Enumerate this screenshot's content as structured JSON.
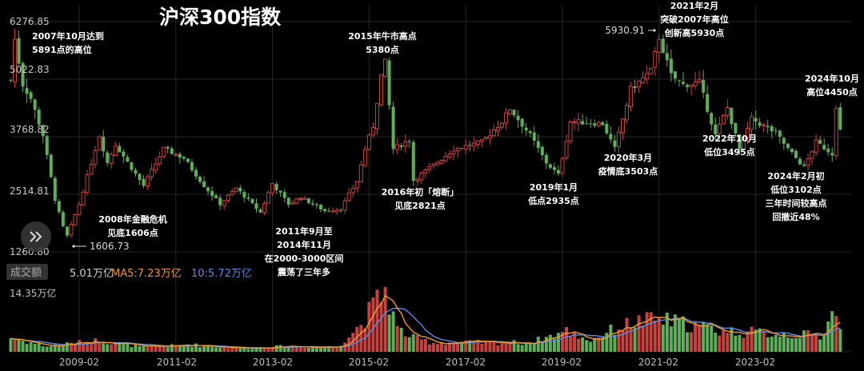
{
  "title": "沪深300指数",
  "colors": {
    "up": "#c8433f",
    "down": "#5fae5a",
    "ma5": "#f39a2a",
    "ma10": "#5b8de6",
    "grid": "#262626",
    "text": "#c8c8c8"
  },
  "icons": {
    "expand": "double-chevron-right-icon"
  },
  "price_axis": {
    "ticks": [
      "6276.85",
      "5022.83",
      "3768.82",
      "2514.81",
      "1260.80"
    ]
  },
  "extremes": {
    "high_label": "5930.91",
    "low_label": "1606.73"
  },
  "annotations": [
    "2007年10月达到\n5891点的高位",
    "2008年金融危机\n见底1606点",
    "2011年9月至\n2014年11月\n在2000-3000区间\n震荡了三年多",
    "2015年牛市高点\n5380点",
    "2016年初「熔断」\n见底2821点",
    "2019年1月\n低点2935点",
    "2020年3月\n疫情底3503点",
    "2021年2月\n突破2007年高位\n创新高5930点",
    "2022年10月\n低位3495点",
    "2024年2月初\n低位3102点\n三年时间较高点\n回撤近48%",
    "2024年10月\n高位4450点"
  ],
  "volume_header": {
    "tab": "成交额",
    "current": "5.01万亿",
    "ma5": "MA5:7.23万亿",
    "ma10": "10:5.72万亿",
    "axis_max": "14.35万亿"
  },
  "time_axis": {
    "ticks": [
      "2009-02",
      "2011-02",
      "2013-02",
      "2015-02",
      "2017-02",
      "2019-02",
      "2021-02",
      "2023-02"
    ]
  },
  "chart_data": {
    "type": "candlestick",
    "title": "沪深300指数",
    "frequency": "monthly (approximate, read from figure)",
    "price_unit": "index points",
    "y_range": [
      1260.8,
      6276.85
    ],
    "x_range": [
      "2007-09",
      "2024-11"
    ],
    "price_keypoints": [
      [
        "2007-09",
        5000
      ],
      [
        "2007-10",
        5891
      ],
      [
        "2007-12",
        4900
      ],
      [
        "2008-02",
        4600
      ],
      [
        "2008-05",
        3800
      ],
      [
        "2008-08",
        2400
      ],
      [
        "2008-10",
        1800
      ],
      [
        "2008-11",
        1606
      ],
      [
        "2009-02",
        2300
      ],
      [
        "2009-07",
        3800
      ],
      [
        "2009-09",
        3200
      ],
      [
        "2009-11",
        3600
      ],
      [
        "2010-06",
        2700
      ],
      [
        "2010-11",
        3500
      ],
      [
        "2011-04",
        3300
      ],
      [
        "2011-09",
        2700
      ],
      [
        "2012-01",
        2300
      ],
      [
        "2012-05",
        2650
      ],
      [
        "2012-11",
        2120
      ],
      [
        "2013-02",
        2750
      ],
      [
        "2013-06",
        2300
      ],
      [
        "2013-09",
        2450
      ],
      [
        "2014-03",
        2150
      ],
      [
        "2014-07",
        2200
      ],
      [
        "2014-11",
        2800
      ],
      [
        "2015-01",
        3500
      ],
      [
        "2015-03",
        4000
      ],
      [
        "2015-05",
        5100
      ],
      [
        "2015-06",
        5380
      ],
      [
        "2015-08",
        3500
      ],
      [
        "2015-12",
        3700
      ],
      [
        "2016-01",
        2821
      ],
      [
        "2016-06",
        3150
      ],
      [
        "2016-11",
        3500
      ],
      [
        "2017-06",
        3650
      ],
      [
        "2017-11",
        4100
      ],
      [
        "2018-01",
        4380
      ],
      [
        "2018-06",
        3800
      ],
      [
        "2018-10",
        3200
      ],
      [
        "2019-01",
        2935
      ],
      [
        "2019-04",
        4100
      ],
      [
        "2019-12",
        4050
      ],
      [
        "2020-03",
        3503
      ],
      [
        "2020-07",
        4800
      ],
      [
        "2020-12",
        5200
      ],
      [
        "2021-02",
        5930
      ],
      [
        "2021-05",
        5100
      ],
      [
        "2021-08",
        4900
      ],
      [
        "2021-12",
        4950
      ],
      [
        "2022-04",
        3800
      ],
      [
        "2022-07",
        4400
      ],
      [
        "2022-10",
        3495
      ],
      [
        "2023-01",
        4150
      ],
      [
        "2023-07",
        3850
      ],
      [
        "2023-10",
        3500
      ],
      [
        "2024-02",
        3102
      ],
      [
        "2024-05",
        3650
      ],
      [
        "2024-09",
        3400
      ],
      [
        "2024-10",
        4450
      ],
      [
        "2024-11",
        3900
      ]
    ],
    "volume": {
      "unit": "万亿",
      "axis_max": 14.35,
      "keypoints": [
        [
          "2007-09",
          3.0
        ],
        [
          "2008-06",
          1.2
        ],
        [
          "2009-07",
          2.5
        ],
        [
          "2010-06",
          1.0
        ],
        [
          "2011-06",
          1.5
        ],
        [
          "2012-06",
          0.8
        ],
        [
          "2013-06",
          1.2
        ],
        [
          "2014-06",
          1.0
        ],
        [
          "2014-12",
          6.0
        ],
        [
          "2015-04",
          11.0
        ],
        [
          "2015-06",
          13.5
        ],
        [
          "2015-09",
          5.0
        ],
        [
          "2016-01",
          3.0
        ],
        [
          "2016-06",
          2.0
        ],
        [
          "2017-06",
          2.0
        ],
        [
          "2018-06",
          2.0
        ],
        [
          "2019-03",
          4.5
        ],
        [
          "2019-09",
          2.5
        ],
        [
          "2020-03",
          5.0
        ],
        [
          "2020-08",
          6.5
        ],
        [
          "2021-02",
          7.0
        ],
        [
          "2021-09",
          6.0
        ],
        [
          "2022-06",
          4.5
        ],
        [
          "2023-06",
          4.0
        ],
        [
          "2024-06",
          3.5
        ],
        [
          "2024-10",
          9.5
        ],
        [
          "2024-11",
          5.01
        ]
      ],
      "ma5_last": 7.23,
      "ma10_last": 5.72
    }
  }
}
